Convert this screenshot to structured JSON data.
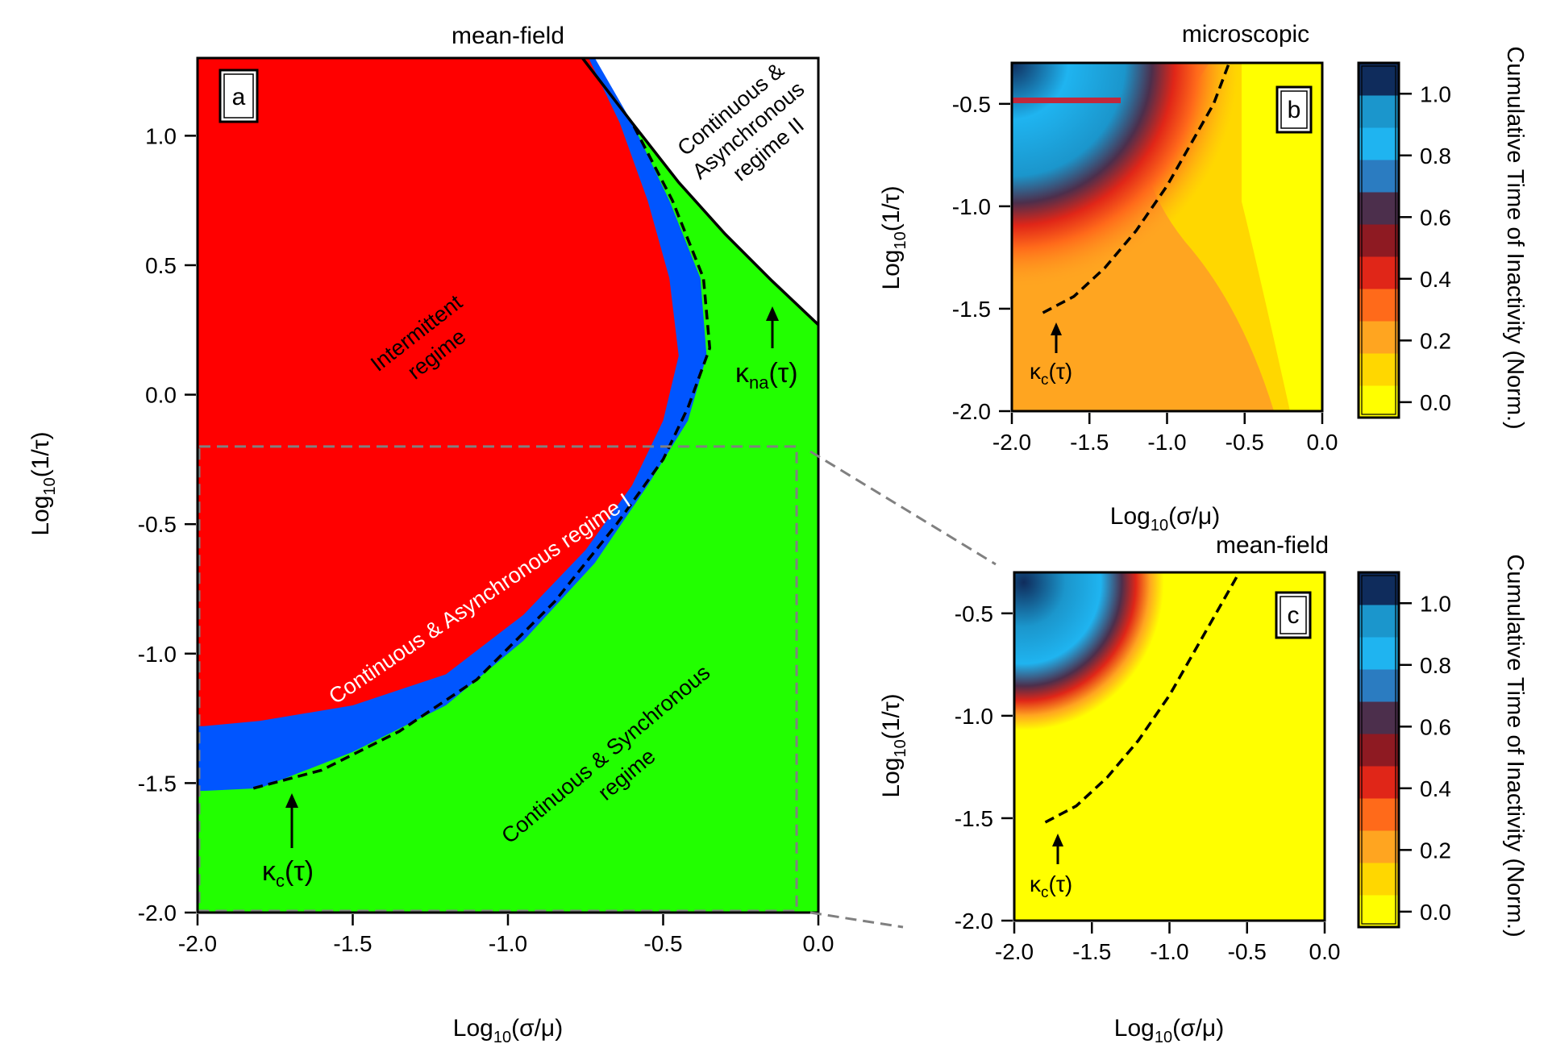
{
  "chart_data": [
    {
      "panel": "a",
      "type": "heatmap",
      "title": "mean-field",
      "xlabel": {
        "prefix": "Log",
        "sub": "10",
        "suffix": "(σ/μ)"
      },
      "ylabel": {
        "prefix": "Log",
        "sub": "10",
        "suffix": "(1/τ)"
      },
      "xlim": [
        -2.0,
        0.0
      ],
      "ylim": [
        -2.0,
        1.3
      ],
      "xticks": [
        "-2.0",
        "-1.5",
        "-1.0",
        "-0.5",
        "0.0"
      ],
      "xtick_values": [
        -2.0,
        -1.5,
        -1.0,
        -0.5,
        0.0
      ],
      "yticks": [
        "1.0",
        "0.5",
        "0.0",
        "-0.5",
        "-1.0",
        "-1.5",
        "-2.0"
      ],
      "ytick_values": [
        1.0,
        0.5,
        0.0,
        -0.5,
        -1.0,
        -1.5,
        -2.0
      ],
      "colors": {
        "intermittent": "#ff0000",
        "async": "#0055ff",
        "sync": "#22ff00",
        "async2": "#ffffff"
      },
      "regions": {
        "intermittent": "Intermittent regime",
        "async_regime_1": "Continuous & Asynchronous regime I",
        "sync_regime": "Continuous & Synchronous regime",
        "async_regime_2": "Continuous & Asynchronous regime II"
      },
      "region_lines": {
        "intermittent": [
          "Intermittent",
          "regime"
        ],
        "async_regime_1": [
          "Continuous &  Asynchronous  regime I"
        ],
        "sync_regime": [
          "Continuous & Synchronous",
          "regime"
        ],
        "async_regime_2": [
          "Continuous &",
          "Asynchronous",
          "regime II"
        ]
      },
      "red_boundary": [
        [
          -1.98,
          -1.28
        ],
        [
          -1.8,
          -1.26
        ],
        [
          -1.5,
          -1.2
        ],
        [
          -1.2,
          -1.08
        ],
        [
          -0.95,
          -0.85
        ],
        [
          -0.75,
          -0.6
        ],
        [
          -0.6,
          -0.35
        ],
        [
          -0.5,
          -0.1
        ],
        [
          -0.45,
          0.15
        ],
        [
          -0.48,
          0.45
        ],
        [
          -0.55,
          0.75
        ],
        [
          -0.64,
          1.05
        ],
        [
          -0.74,
          1.3
        ]
      ],
      "blue_boundary": [
        [
          -1.98,
          -1.53
        ],
        [
          -1.8,
          -1.52
        ],
        [
          -1.5,
          -1.38
        ],
        [
          -1.2,
          -1.2
        ],
        [
          -0.95,
          -0.95
        ],
        [
          -0.72,
          -0.65
        ],
        [
          -0.55,
          -0.35
        ],
        [
          -0.42,
          -0.1
        ],
        [
          -0.36,
          0.15
        ],
        [
          -0.38,
          0.45
        ],
        [
          -0.48,
          0.75
        ],
        [
          -0.6,
          1.05
        ],
        [
          -0.72,
          1.3
        ]
      ],
      "kappa_na_curve": [
        [
          -0.76,
          1.3
        ],
        [
          -0.6,
          1.05
        ],
        [
          -0.45,
          0.82
        ],
        [
          -0.3,
          0.62
        ],
        [
          -0.15,
          0.44
        ],
        [
          0.0,
          0.27
        ]
      ],
      "kappa_c_curve": [
        [
          -1.82,
          -1.52
        ],
        [
          -1.6,
          -1.45
        ],
        [
          -1.35,
          -1.3
        ],
        [
          -1.1,
          -1.1
        ],
        [
          -0.85,
          -0.8
        ],
        [
          -0.65,
          -0.5
        ],
        [
          -0.5,
          -0.25
        ],
        [
          -0.42,
          -0.05
        ],
        [
          -0.35,
          0.18
        ],
        [
          -0.37,
          0.45
        ],
        [
          -0.47,
          0.75
        ],
        [
          -0.6,
          1.05
        ]
      ],
      "annotations": {
        "kappa_c": {
          "label": "κ",
          "sub": "c",
          "suffix": "(τ)",
          "at": [
            -1.72,
            -1.73
          ]
        },
        "kappa_na": {
          "label": "κ",
          "sub": "na",
          "suffix": "(τ)",
          "at": [
            -0.16,
            0.03
          ]
        }
      },
      "zoom_box": {
        "x": [
          -2.0,
          -0.07
        ],
        "y": [
          -2.0,
          -0.2
        ]
      }
    },
    {
      "panel": "b",
      "type": "heatmap",
      "title": "microscopic",
      "xlabel": {
        "prefix": "Log",
        "sub": "10",
        "suffix": "(σ/μ)"
      },
      "ylabel": {
        "prefix": "Log",
        "sub": "10",
        "suffix": "(1/τ)"
      },
      "xlim": [
        -2.0,
        0.0
      ],
      "ylim": [
        -2.0,
        -0.3
      ],
      "xticks": [
        "-2.0",
        "-1.5",
        "-1.0",
        "-0.5",
        "0.0"
      ],
      "xtick_values": [
        -2.0,
        -1.5,
        -1.0,
        -0.5,
        0.0
      ],
      "yticks": [
        "-0.5",
        "-1.0",
        "-1.5",
        "-2.0"
      ],
      "ytick_values": [
        -0.5,
        -1.0,
        -1.5,
        -2.0
      ],
      "kappa_c_curve": [
        [
          -1.8,
          -1.52
        ],
        [
          -1.6,
          -1.44
        ],
        [
          -1.4,
          -1.3
        ],
        [
          -1.2,
          -1.12
        ],
        [
          -1.0,
          -0.9
        ],
        [
          -0.85,
          -0.7
        ],
        [
          -0.7,
          -0.5
        ],
        [
          -0.6,
          -0.3
        ]
      ],
      "annotation": {
        "label": "κ",
        "sub": "c",
        "suffix": "(τ)"
      },
      "colorbar": {
        "label": "Cumulative Time of Inactivity (Norm.)",
        "ticks": [
          "1.0",
          "0.8",
          "0.6",
          "0.4",
          "0.2",
          "0.0"
        ],
        "tick_values": [
          1.0,
          0.8,
          0.6,
          0.4,
          0.2,
          0.0
        ],
        "range": [
          -0.05,
          1.1
        ],
        "colors": [
          "#ffff00",
          "#ffd700",
          "#ffa520",
          "#ff6a1a",
          "#e02618",
          "#8e1a22",
          "#4c2f4c",
          "#2b7cc1",
          "#1fb4f0",
          "#1b96cc",
          "#0f2c5c"
        ]
      }
    },
    {
      "panel": "c",
      "type": "heatmap",
      "title": "mean-field",
      "xlabel": {
        "prefix": "Log",
        "sub": "10",
        "suffix": "(σ/μ)"
      },
      "ylabel": {
        "prefix": "Log",
        "sub": "10",
        "suffix": "(1/τ)"
      },
      "xlim": [
        -2.0,
        0.0
      ],
      "ylim": [
        -2.0,
        -0.3
      ],
      "xticks": [
        "-2.0",
        "-1.5",
        "-1.0",
        "-0.5",
        "0.0"
      ],
      "xtick_values": [
        -2.0,
        -1.5,
        -1.0,
        -0.5,
        0.0
      ],
      "yticks": [
        "-0.5",
        "-1.0",
        "-1.5",
        "-2.0"
      ],
      "ytick_values": [
        -0.5,
        -1.0,
        -1.5,
        -2.0
      ],
      "kappa_c_curve": [
        [
          -1.8,
          -1.52
        ],
        [
          -1.6,
          -1.44
        ],
        [
          -1.4,
          -1.3
        ],
        [
          -1.2,
          -1.12
        ],
        [
          -1.0,
          -0.9
        ],
        [
          -0.85,
          -0.7
        ],
        [
          -0.7,
          -0.5
        ],
        [
          -0.55,
          -0.3
        ]
      ],
      "annotation": {
        "label": "κ",
        "sub": "c",
        "suffix": "(τ)"
      },
      "colorbar": {
        "label": "Cumulative Time of Inactivity (Norm.)",
        "ticks": [
          "1.0",
          "0.8",
          "0.6",
          "0.4",
          "0.2",
          "0.0"
        ],
        "tick_values": [
          1.0,
          0.8,
          0.6,
          0.4,
          0.2,
          0.0
        ],
        "range": [
          -0.05,
          1.1
        ],
        "colors": [
          "#ffff00",
          "#ffd700",
          "#ffa520",
          "#ff6a1a",
          "#e02618",
          "#8e1a22",
          "#4c2f4c",
          "#2b7cc1",
          "#1fb4f0",
          "#1b96cc",
          "#0f2c5c"
        ]
      }
    }
  ]
}
